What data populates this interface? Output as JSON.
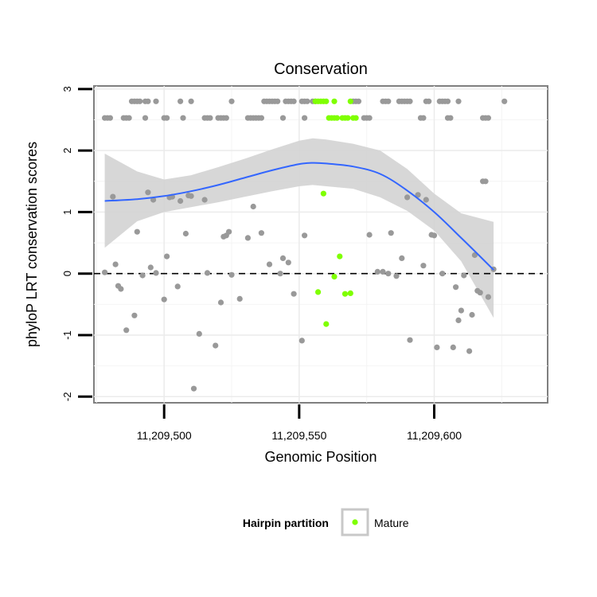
{
  "chart_data": {
    "type": "scatter",
    "title": "Conservation",
    "xlabel": "Genomic Position",
    "ylabel": "phyloP LRT conservation scores",
    "xlim": [
      11209474,
      11209642
    ],
    "ylim": [
      -2.1,
      3.05
    ],
    "x_ticks": [
      {
        "value": 11209500,
        "label": "11,209,500"
      },
      {
        "value": 11209550,
        "label": "11,209,550"
      },
      {
        "value": 11209600,
        "label": "11,209,600"
      }
    ],
    "y_ticks": [
      {
        "value": -2,
        "label": "-2"
      },
      {
        "value": -1,
        "label": "-1"
      },
      {
        "value": 0,
        "label": "0"
      },
      {
        "value": 1,
        "label": "1"
      },
      {
        "value": 2,
        "label": "2"
      },
      {
        "value": 3,
        "label": "3"
      }
    ],
    "grid": true,
    "reference_line": {
      "y": 0,
      "style": "dashed"
    },
    "legend": {
      "title": "Hairpin partition",
      "placement": "bottom",
      "entries": [
        {
          "label": "Mature",
          "color": "#7fff00"
        }
      ]
    },
    "colors": {
      "other": "#999999",
      "mature": "#7fff00",
      "smooth": "#3366ff",
      "band": "#d3d3d3"
    },
    "points": [
      [
        11209478,
        2.53
      ],
      [
        11209479,
        2.53
      ],
      [
        11209480,
        2.53
      ],
      [
        11209485,
        2.53
      ],
      [
        11209486,
        2.53
      ],
      [
        11209487,
        2.53
      ],
      [
        11209493,
        2.53
      ],
      [
        11209500,
        2.53
      ],
      [
        11209501,
        2.53
      ],
      [
        11209507,
        2.53
      ],
      [
        11209515,
        2.53
      ],
      [
        11209516,
        2.53
      ],
      [
        11209517,
        2.53
      ],
      [
        11209520,
        2.53
      ],
      [
        11209521,
        2.53
      ],
      [
        11209522,
        2.53
      ],
      [
        11209523,
        2.53
      ],
      [
        11209531,
        2.53
      ],
      [
        11209532,
        2.53
      ],
      [
        11209533,
        2.53
      ],
      [
        11209534,
        2.53
      ],
      [
        11209535,
        2.53
      ],
      [
        11209536,
        2.53
      ],
      [
        11209544,
        2.53
      ],
      [
        11209552,
        2.53
      ],
      [
        11209574,
        2.53
      ],
      [
        11209575,
        2.53
      ],
      [
        11209576,
        2.53
      ],
      [
        11209595,
        2.53
      ],
      [
        11209596,
        2.53
      ],
      [
        11209605,
        2.53
      ],
      [
        11209606,
        2.53
      ],
      [
        11209618,
        2.53
      ],
      [
        11209619,
        2.53
      ],
      [
        11209620,
        2.53
      ],
      [
        11209488,
        2.8
      ],
      [
        11209489,
        2.8
      ],
      [
        11209490,
        2.8
      ],
      [
        11209491,
        2.8
      ],
      [
        11209493,
        2.8
      ],
      [
        11209494,
        2.8
      ],
      [
        11209497,
        2.8
      ],
      [
        11209506,
        2.8
      ],
      [
        11209510,
        2.8
      ],
      [
        11209525,
        2.8
      ],
      [
        11209537,
        2.8
      ],
      [
        11209538,
        2.8
      ],
      [
        11209539,
        2.8
      ],
      [
        11209540,
        2.8
      ],
      [
        11209541,
        2.8
      ],
      [
        11209542,
        2.8
      ],
      [
        11209545,
        2.8
      ],
      [
        11209546,
        2.8
      ],
      [
        11209547,
        2.8
      ],
      [
        11209548,
        2.8
      ],
      [
        11209551,
        2.8
      ],
      [
        11209552,
        2.8
      ],
      [
        11209553,
        2.8
      ],
      [
        11209555,
        2.8
      ],
      [
        11209556,
        2.8
      ],
      [
        11209570,
        2.8
      ],
      [
        11209571,
        2.8
      ],
      [
        11209572,
        2.8
      ],
      [
        11209581,
        2.8
      ],
      [
        11209582,
        2.8
      ],
      [
        11209583,
        2.8
      ],
      [
        11209587,
        2.8
      ],
      [
        11209588,
        2.8
      ],
      [
        11209589,
        2.8
      ],
      [
        11209590,
        2.8
      ],
      [
        11209591,
        2.8
      ],
      [
        11209597,
        2.8
      ],
      [
        11209598,
        2.8
      ],
      [
        11209602,
        2.8
      ],
      [
        11209603,
        2.8
      ],
      [
        11209604,
        2.8
      ],
      [
        11209605,
        2.8
      ],
      [
        11209609,
        2.8
      ],
      [
        11209626,
        2.8
      ],
      [
        11209478,
        0.02
      ],
      [
        11209481,
        1.25
      ],
      [
        11209482,
        0.15
      ],
      [
        11209483,
        -0.2
      ],
      [
        11209484,
        -0.25
      ],
      [
        11209486,
        -0.92
      ],
      [
        11209489,
        -0.68
      ],
      [
        11209490,
        0.68
      ],
      [
        11209492,
        -0.03
      ],
      [
        11209494,
        1.32
      ],
      [
        11209495,
        0.1
      ],
      [
        11209496,
        1.2
      ],
      [
        11209497,
        0.01
      ],
      [
        11209500,
        -0.42
      ],
      [
        11209501,
        0.28
      ],
      [
        11209502,
        1.24
      ],
      [
        11209503,
        1.25
      ],
      [
        11209505,
        -0.21
      ],
      [
        11209506,
        1.18
      ],
      [
        11209508,
        0.65
      ],
      [
        11209509,
        1.27
      ],
      [
        11209510,
        1.26
      ],
      [
        11209511,
        -1.87
      ],
      [
        11209513,
        -0.98
      ],
      [
        11209515,
        1.2
      ],
      [
        11209516,
        0.01
      ],
      [
        11209519,
        -1.17
      ],
      [
        11209521,
        -0.47
      ],
      [
        11209522,
        0.6
      ],
      [
        11209523,
        0.62
      ],
      [
        11209524,
        0.68
      ],
      [
        11209525,
        -0.02
      ],
      [
        11209528,
        -0.41
      ],
      [
        11209531,
        0.58
      ],
      [
        11209533,
        1.09
      ],
      [
        11209536,
        0.66
      ],
      [
        11209539,
        0.15
      ],
      [
        11209543,
        0.0
      ],
      [
        11209544,
        0.25
      ],
      [
        11209546,
        0.18
      ],
      [
        11209548,
        -0.33
      ],
      [
        11209551,
        -1.09
      ],
      [
        11209552,
        0.62
      ],
      [
        11209576,
        0.63
      ],
      [
        11209579,
        0.03
      ],
      [
        11209581,
        0.03
      ],
      [
        11209583,
        0.0
      ],
      [
        11209584,
        0.66
      ],
      [
        11209586,
        -0.04
      ],
      [
        11209588,
        0.25
      ],
      [
        11209590,
        1.24
      ],
      [
        11209591,
        -1.08
      ],
      [
        11209594,
        1.28
      ],
      [
        11209596,
        0.13
      ],
      [
        11209597,
        1.2
      ],
      [
        11209599,
        0.63
      ],
      [
        11209600,
        0.62
      ],
      [
        11209601,
        -1.2
      ],
      [
        11209603,
        0.0
      ],
      [
        11209607,
        -1.2
      ],
      [
        11209608,
        -0.22
      ],
      [
        11209609,
        -0.76
      ],
      [
        11209610,
        -0.6
      ],
      [
        11209611,
        -0.03
      ],
      [
        11209613,
        -1.26
      ],
      [
        11209614,
        -0.67
      ],
      [
        11209615,
        0.3
      ],
      [
        11209616,
        -0.28
      ],
      [
        11209617,
        -0.31
      ],
      [
        11209618,
        1.5
      ],
      [
        11209619,
        1.5
      ],
      [
        11209620,
        -0.38
      ],
      [
        11209622,
        0.07
      ]
    ],
    "mature_points": [
      [
        11209556,
        2.8
      ],
      [
        11209557,
        2.8
      ],
      [
        11209558,
        2.8
      ],
      [
        11209559,
        2.8
      ],
      [
        11209560,
        2.8
      ],
      [
        11209563,
        2.8
      ],
      [
        11209569,
        2.8
      ],
      [
        11209561,
        2.53
      ],
      [
        11209562,
        2.53
      ],
      [
        11209563,
        2.53
      ],
      [
        11209564,
        2.53
      ],
      [
        11209566,
        2.53
      ],
      [
        11209567,
        2.53
      ],
      [
        11209568,
        2.53
      ],
      [
        11209570,
        2.53
      ],
      [
        11209571,
        2.53
      ],
      [
        11209559,
        1.3
      ],
      [
        11209563,
        -0.05
      ],
      [
        11209565,
        0.28
      ],
      [
        11209557,
        -0.3
      ],
      [
        11209560,
        -0.82
      ],
      [
        11209567,
        -0.33
      ],
      [
        11209569,
        -0.32
      ]
    ],
    "smooth": {
      "x": [
        11209478,
        11209490,
        11209500,
        11209510,
        11209520,
        11209530,
        11209540,
        11209550,
        11209555,
        11209560,
        11209570,
        11209580,
        11209590,
        11209600,
        11209610,
        11209622
      ],
      "y": [
        1.18,
        1.21,
        1.26,
        1.34,
        1.44,
        1.56,
        1.68,
        1.78,
        1.8,
        1.79,
        1.74,
        1.62,
        1.35,
        1.0,
        0.58,
        0.06
      ],
      "lower": [
        0.42,
        0.85,
        1.0,
        1.08,
        1.16,
        1.25,
        1.34,
        1.42,
        1.44,
        1.42,
        1.38,
        1.24,
        1.02,
        0.7,
        0.2,
        -0.72
      ],
      "upper": [
        1.95,
        1.66,
        1.53,
        1.6,
        1.73,
        1.87,
        2.02,
        2.16,
        2.2,
        2.18,
        2.11,
        2.0,
        1.7,
        1.3,
        0.98,
        0.84
      ]
    }
  }
}
